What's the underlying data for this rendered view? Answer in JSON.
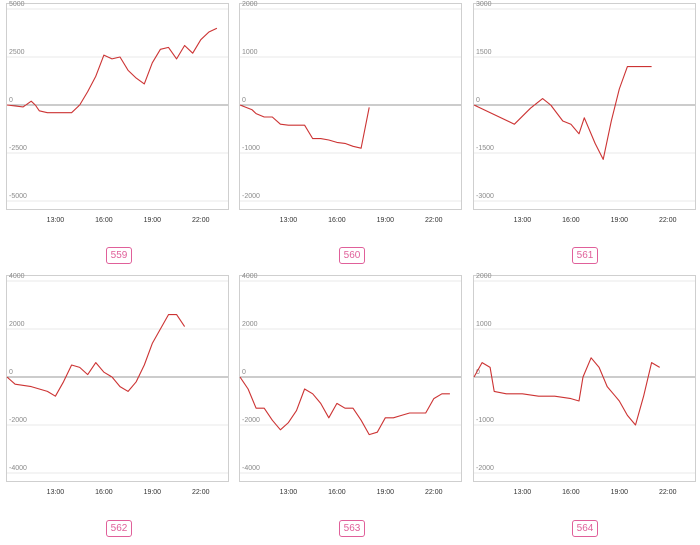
{
  "series_color": "#cc3333",
  "chart_data": [
    {
      "type": "line",
      "label": "559",
      "x_ticks": [
        "13:00",
        "16:00",
        "19:00",
        "22:00"
      ],
      "y_ticks": [
        "5000",
        "2500",
        "0",
        "-2500",
        "-5000"
      ],
      "ylim": [
        -5000,
        5000
      ],
      "x": [
        "10:00",
        "11:00",
        "11:30",
        "11:45",
        "12:00",
        "12:30",
        "13:00",
        "13:30",
        "14:00",
        "14:30",
        "15:00",
        "15:30",
        "16:00",
        "16:30",
        "17:00",
        "17:30",
        "18:00",
        "18:30",
        "19:00",
        "19:30",
        "20:00",
        "20:30",
        "21:00",
        "21:30",
        "22:00",
        "22:30",
        "23:00"
      ],
      "values": [
        0,
        -100,
        200,
        0,
        -300,
        -400,
        -400,
        -400,
        -400,
        0,
        700,
        1500,
        2600,
        2400,
        2500,
        1800,
        1400,
        1100,
        2200,
        2900,
        3000,
        2400,
        3100,
        2700,
        3400,
        3800,
        4000
      ]
    },
    {
      "type": "line",
      "label": "560",
      "x_ticks": [
        "13:00",
        "16:00",
        "19:00",
        "22:00"
      ],
      "y_ticks": [
        "2000",
        "1000",
        "0",
        "-1000",
        "-2000"
      ],
      "ylim": [
        -2000,
        2000
      ],
      "x": [
        "10:00",
        "10:45",
        "11:00",
        "11:30",
        "12:00",
        "12:30",
        "13:00",
        "13:30",
        "14:00",
        "14:30",
        "15:00",
        "15:30",
        "16:00",
        "16:30",
        "17:00",
        "17:30",
        "18:00"
      ],
      "values": [
        0,
        -100,
        -180,
        -250,
        -250,
        -400,
        -420,
        -420,
        -420,
        -700,
        -700,
        -730,
        -780,
        -800,
        -860,
        -900,
        -50
      ]
    },
    {
      "type": "line",
      "label": "561",
      "x_ticks": [
        "13:00",
        "16:00",
        "19:00",
        "22:00"
      ],
      "y_ticks": [
        "3000",
        "1500",
        "0",
        "-1500",
        "-3000"
      ],
      "ylim": [
        -3000,
        3000
      ],
      "x": [
        "10:00",
        "12:30",
        "13:30",
        "14:15",
        "14:45",
        "15:30",
        "16:00",
        "16:30",
        "16:50",
        "17:30",
        "18:00",
        "18:30",
        "19:00",
        "19:30",
        "20:00",
        "20:30",
        "21:00"
      ],
      "values": [
        0,
        -600,
        -100,
        200,
        0,
        -500,
        -600,
        -900,
        -400,
        -1200,
        -1700,
        -500,
        500,
        1200,
        1200,
        1200,
        1200
      ]
    },
    {
      "type": "line",
      "label": "562",
      "x_ticks": [
        "13:00",
        "16:00",
        "19:00",
        "22:00"
      ],
      "y_ticks": [
        "4000",
        "2000",
        "0",
        "-2000",
        "-4000"
      ],
      "ylim": [
        -4000,
        4000
      ],
      "x": [
        "10:00",
        "10:30",
        "11:30",
        "12:30",
        "13:00",
        "13:30",
        "14:00",
        "14:30",
        "15:00",
        "15:30",
        "16:00",
        "16:30",
        "17:00",
        "17:30",
        "18:00",
        "18:30",
        "19:00",
        "19:30",
        "20:00",
        "20:30",
        "21:00"
      ],
      "values": [
        0,
        -300,
        -400,
        -600,
        -800,
        -200,
        500,
        400,
        100,
        600,
        200,
        0,
        -400,
        -600,
        -200,
        500,
        1400,
        2000,
        2600,
        2600,
        2100
      ]
    },
    {
      "type": "line",
      "label": "563",
      "x_ticks": [
        "13:00",
        "16:00",
        "19:00",
        "22:00"
      ],
      "y_ticks": [
        "4000",
        "2000",
        "0",
        "-2000",
        "-4000"
      ],
      "ylim": [
        -4000,
        4000
      ],
      "x": [
        "10:00",
        "10:30",
        "11:00",
        "11:30",
        "12:00",
        "12:30",
        "13:00",
        "13:30",
        "14:00",
        "14:30",
        "15:00",
        "15:30",
        "16:00",
        "16:30",
        "17:00",
        "17:30",
        "18:00",
        "18:30",
        "19:00",
        "19:30",
        "20:00",
        "20:30",
        "21:00",
        "21:30",
        "22:00",
        "22:30",
        "23:00"
      ],
      "values": [
        0,
        -500,
        -1300,
        -1300,
        -1800,
        -2200,
        -1900,
        -1400,
        -500,
        -700,
        -1100,
        -1700,
        -1100,
        -1300,
        -1300,
        -1800,
        -2400,
        -2300,
        -1700,
        -1700,
        -1600,
        -1500,
        -1500,
        -1500,
        -900,
        -700,
        -700
      ]
    },
    {
      "type": "line",
      "label": "564",
      "x_ticks": [
        "13:00",
        "16:00",
        "19:00",
        "22:00"
      ],
      "y_ticks": [
        "2000",
        "1000",
        "0",
        "-1000",
        "-2000"
      ],
      "ylim": [
        -2000,
        2000
      ],
      "x": [
        "10:00",
        "10:30",
        "11:00",
        "11:15",
        "12:00",
        "13:00",
        "14:00",
        "15:00",
        "16:00",
        "16:30",
        "16:45",
        "17:15",
        "17:45",
        "18:15",
        "18:45",
        "19:00",
        "19:30",
        "20:00",
        "20:30",
        "21:00",
        "21:30"
      ],
      "values": [
        0,
        300,
        200,
        -300,
        -350,
        -350,
        -400,
        -400,
        -450,
        -500,
        0,
        400,
        200,
        -200,
        -400,
        -500,
        -800,
        -1000,
        -400,
        300,
        200
      ]
    }
  ]
}
